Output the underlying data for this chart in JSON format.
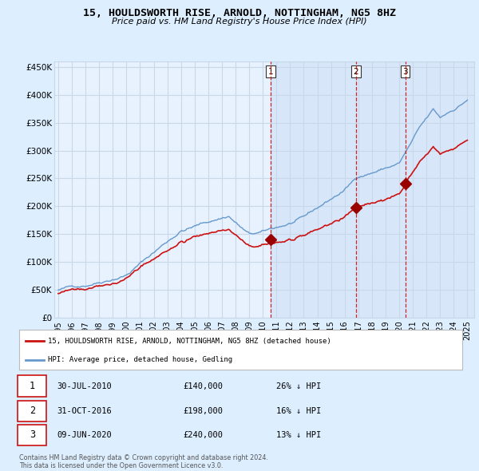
{
  "title": "15, HOULDSWORTH RISE, ARNOLD, NOTTINGHAM, NG5 8HZ",
  "subtitle": "Price paid vs. HM Land Registry's House Price Index (HPI)",
  "background_color": "#ddeeff",
  "plot_bg_color": "#e8f2ff",
  "plot_bg_shaded": "#ccdff5",
  "grid_color": "#c8d8e8",
  "ylim": [
    0,
    460000
  ],
  "yticks": [
    0,
    50000,
    100000,
    150000,
    200000,
    250000,
    300000,
    350000,
    400000,
    450000
  ],
  "ytick_labels": [
    "£0",
    "£50K",
    "£100K",
    "£150K",
    "£200K",
    "£250K",
    "£300K",
    "£350K",
    "£400K",
    "£450K"
  ],
  "xlim_start": 1994.7,
  "xlim_end": 2025.5,
  "xtick_years": [
    1995,
    1996,
    1997,
    1998,
    1999,
    2000,
    2001,
    2002,
    2003,
    2004,
    2005,
    2006,
    2007,
    2008,
    2009,
    2010,
    2011,
    2012,
    2013,
    2014,
    2015,
    2016,
    2017,
    2018,
    2019,
    2020,
    2021,
    2022,
    2023,
    2024,
    2025
  ],
  "hpi_color": "#6699cc",
  "price_color": "#cc1111",
  "vline_color": "#cc1111",
  "vline_style": "--",
  "shade_start": 2010.58,
  "sales": [
    {
      "date_num": 2010.58,
      "price": 140000,
      "label": "1"
    },
    {
      "date_num": 2016.83,
      "price": 198000,
      "label": "2"
    },
    {
      "date_num": 2020.44,
      "price": 240000,
      "label": "3"
    }
  ],
  "legend_house_label": "15, HOULDSWORTH RISE, ARNOLD, NOTTINGHAM, NG5 8HZ (detached house)",
  "legend_hpi_label": "HPI: Average price, detached house, Gedling",
  "table_rows": [
    {
      "num": "1",
      "date": "30-JUL-2010",
      "price": "£140,000",
      "change": "26% ↓ HPI"
    },
    {
      "num": "2",
      "date": "31-OCT-2016",
      "price": "£198,000",
      "change": "16% ↓ HPI"
    },
    {
      "num": "3",
      "date": "09-JUN-2020",
      "price": "£240,000",
      "change": "13% ↓ HPI"
    }
  ],
  "footnote": "Contains HM Land Registry data © Crown copyright and database right 2024.\nThis data is licensed under the Open Government Licence v3.0."
}
